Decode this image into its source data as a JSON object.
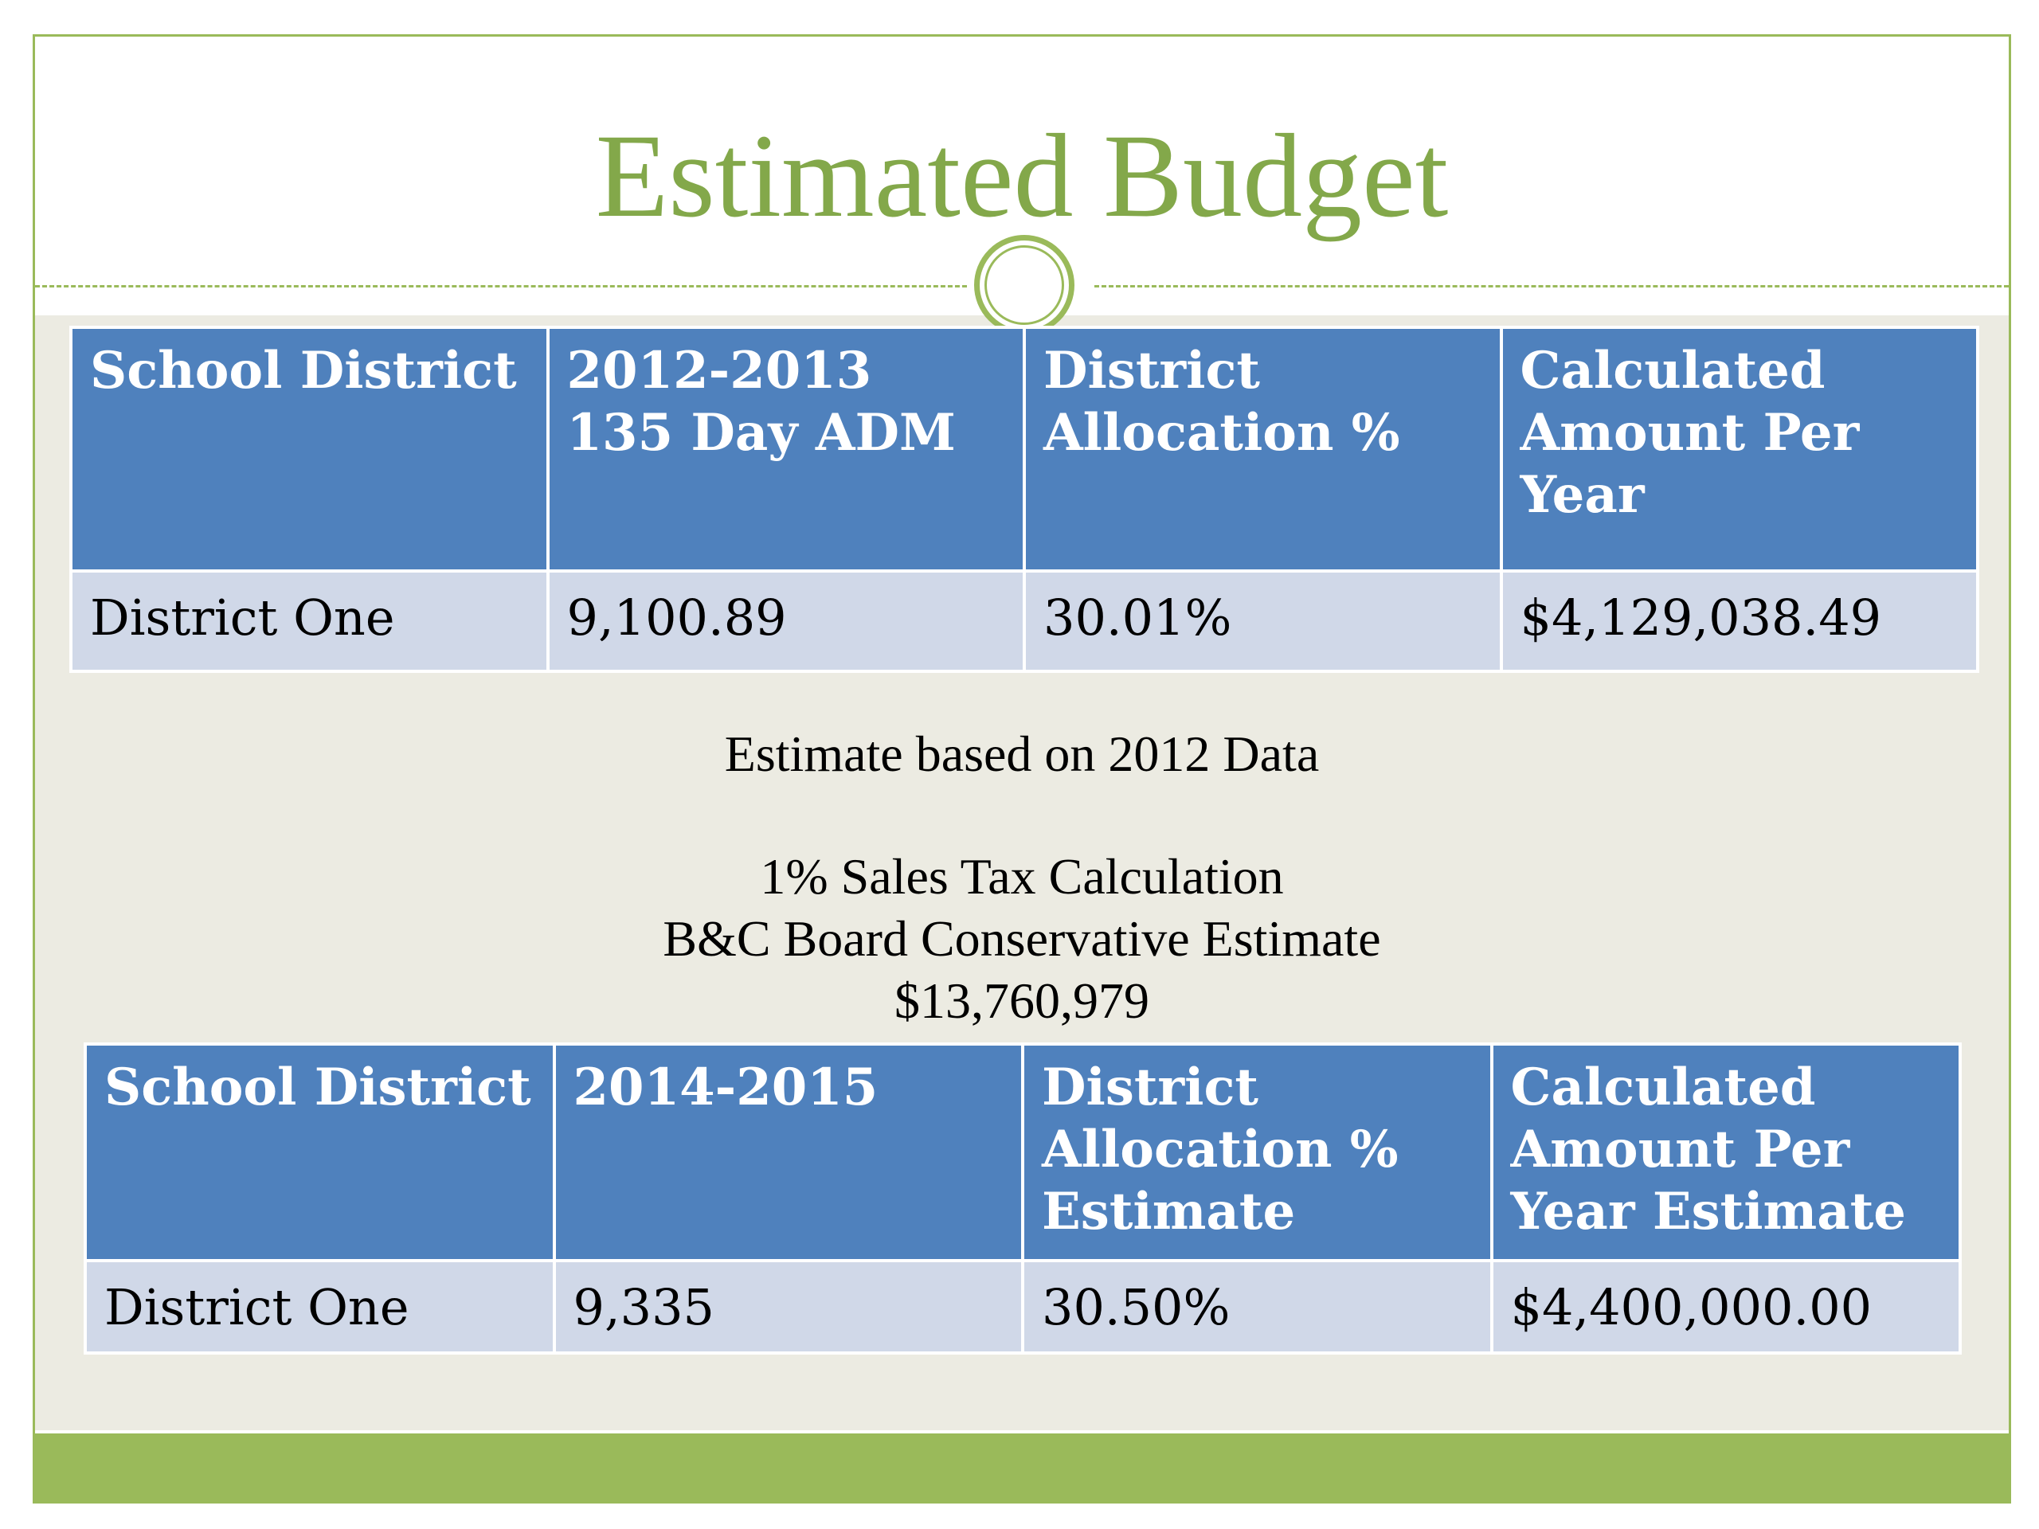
{
  "title": "Estimated Budget",
  "table1": {
    "headers": [
      "School District",
      "2012-2013\n135 Day ADM",
      "District\nAllocation %",
      "Calculated\nAmount Per\nYear"
    ],
    "rows": [
      [
        "District One",
        "9,100.89",
        "30.01%",
        "$4,129,038.49"
      ]
    ]
  },
  "notes": {
    "estimate_basis": "Estimate based on 2012 Data",
    "sales_tax_label": "1% Sales Tax Calculation",
    "board_estimate_label": "B&C Board Conservative Estimate",
    "board_estimate_value": "$13,760,979"
  },
  "table2": {
    "headers": [
      "School District",
      "2014-2015",
      "District\nAllocation %\nEstimate",
      "Calculated\nAmount Per\nYear Estimate"
    ],
    "rows": [
      [
        "District One",
        "9,335",
        "30.50%",
        "$4,400,000.00"
      ]
    ]
  },
  "colors": {
    "accent_green": "#9aba5a",
    "title_green": "#83a84a",
    "header_blue": "#4f81bd",
    "row_blue": "#d0d8e8",
    "content_bg": "#ecebe2"
  }
}
